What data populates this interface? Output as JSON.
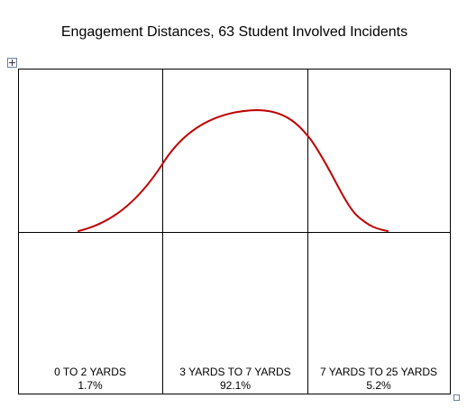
{
  "title": "Engagement Distances, 63 Student Involved Incidents",
  "table": {
    "columns": [
      {
        "range": "0 TO 2 YARDS",
        "share": "1.7%"
      },
      {
        "range": "3 YARDS TO 7 YARDS",
        "share": "92.1%"
      },
      {
        "range": "7 YARDS TO 25 YARDS",
        "share": "5.2%"
      }
    ]
  }
}
